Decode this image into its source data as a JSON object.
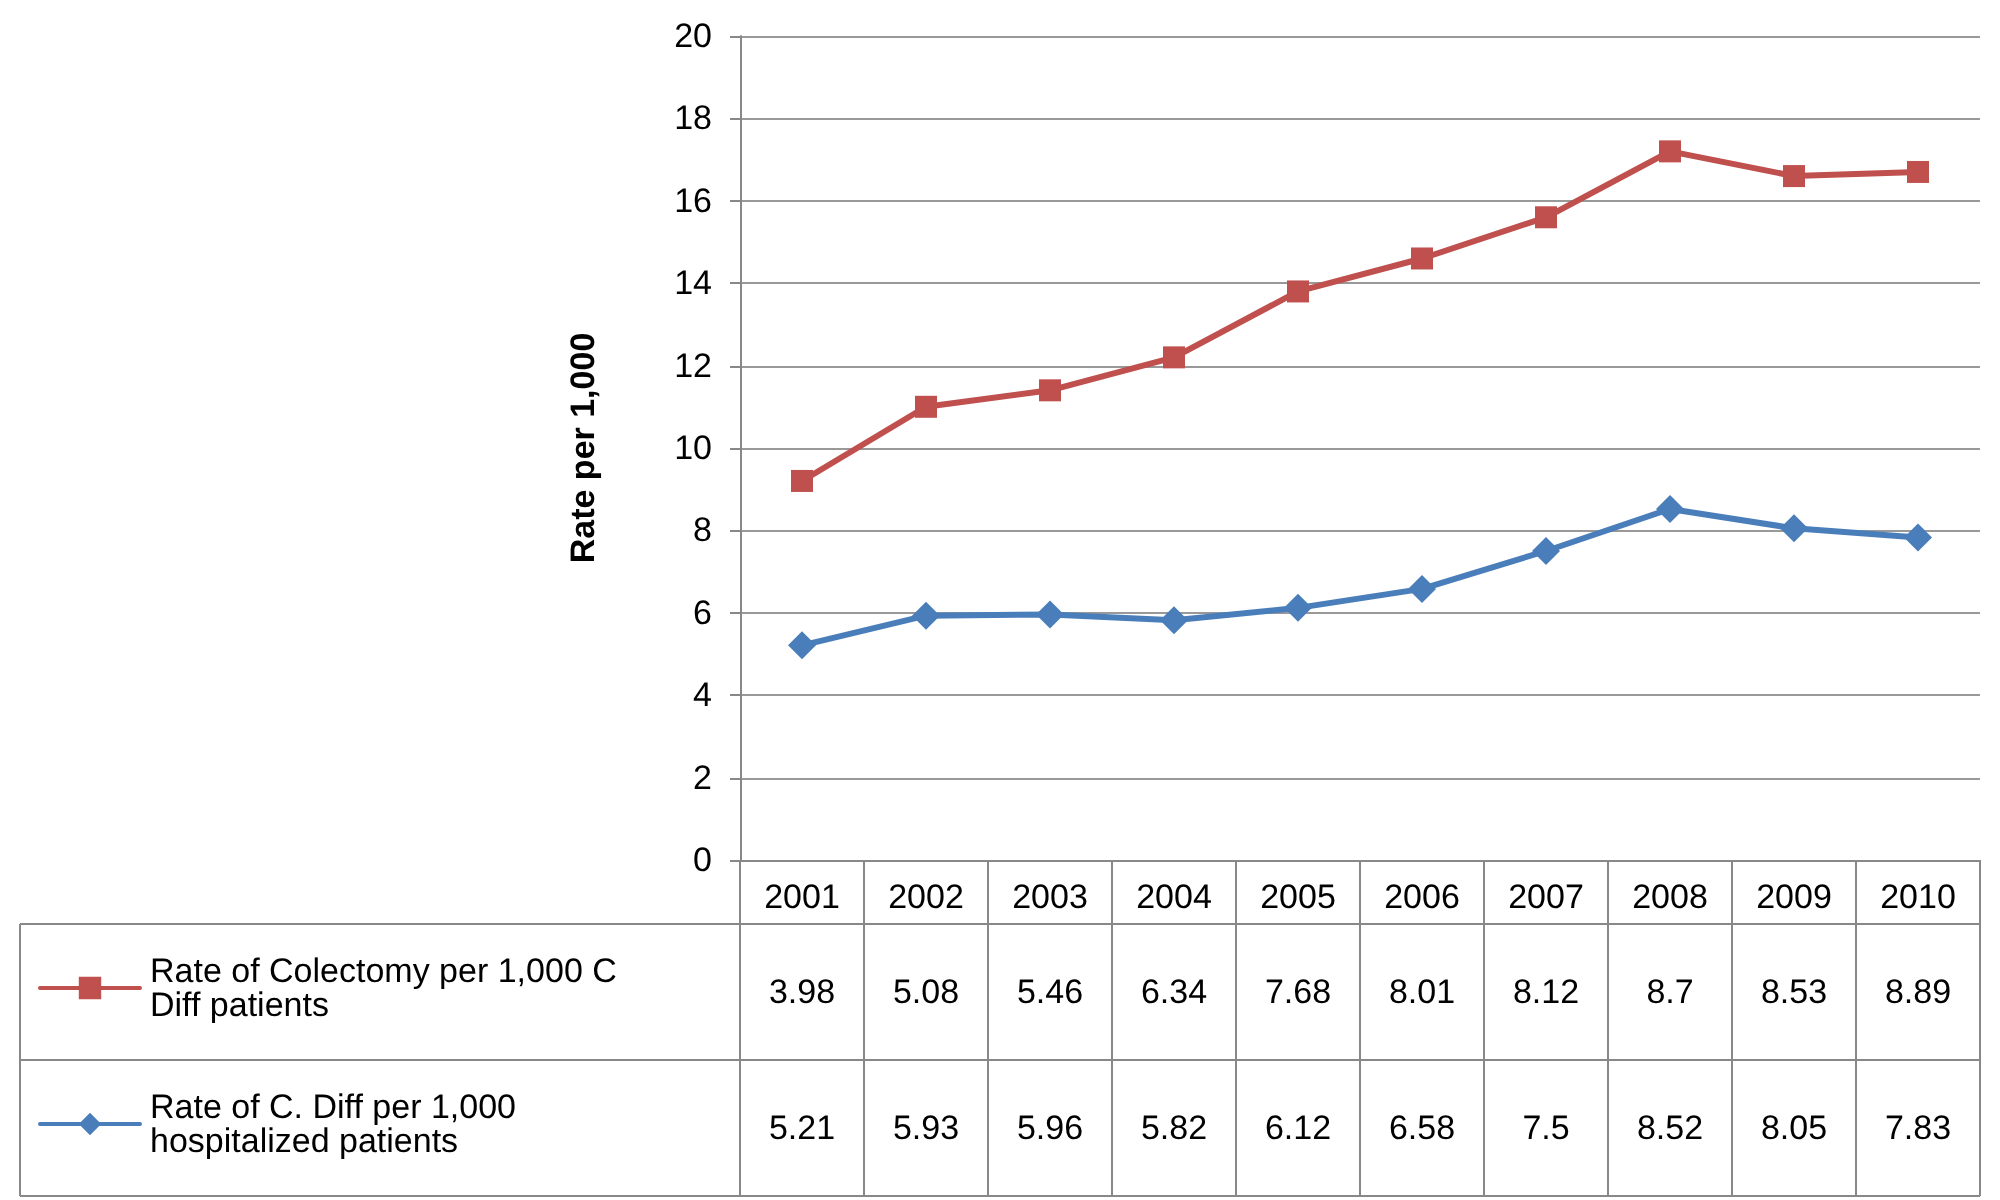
{
  "chart_data": {
    "type": "line",
    "ylabel": "Rate per 1,000",
    "categories": [
      "2001",
      "2002",
      "2003",
      "2004",
      "2005",
      "2006",
      "2007",
      "2008",
      "2009",
      "2010"
    ],
    "series": [
      {
        "name": "Rate of Colectomy per 1,000 C Diff patients",
        "color": "#c0504d",
        "marker": "square",
        "values": [
          9.2,
          11.0,
          11.4,
          12.2,
          13.8,
          14.6,
          15.6,
          17.2,
          16.6,
          16.7
        ]
      },
      {
        "name": "Rate of C. Diff per 1,000 hospitalized patients",
        "color": "#4a7ebb",
        "marker": "diamond",
        "values": [
          5.21,
          5.93,
          5.96,
          5.82,
          6.12,
          6.58,
          7.5,
          8.52,
          8.05,
          7.83
        ],
        "value_labels": [
          "5.21",
          "5.93",
          "5.96",
          "5.82",
          "6.12",
          "6.58",
          "7.5",
          "8.52",
          "8.05",
          "7.83"
        ]
      }
    ],
    "ylim": [
      0,
      20
    ],
    "yticks": [
      0,
      2,
      4,
      6,
      8,
      10,
      12,
      14,
      16,
      18,
      20
    ],
    "annotations": [
      "3.98",
      "5.08",
      "5.46",
      "6.34",
      "7.68",
      "8.01",
      "8.12",
      "8.7",
      "8.53",
      "8.89"
    ],
    "grid": "y",
    "legend": "bottom",
    "line_style": "solid"
  }
}
